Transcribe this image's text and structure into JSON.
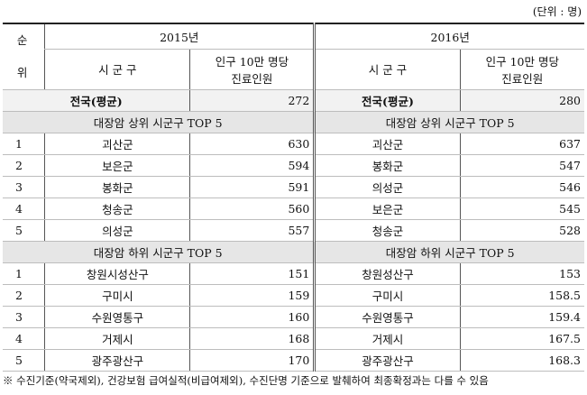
{
  "unit": "(단위 : 명)",
  "header": {
    "rank_label_1": "순",
    "rank_label_2": "위",
    "year_2015": "2015년",
    "year_2016": "2016년",
    "col_region": "시 군 구",
    "col_value_line1": "인구 10만 명당",
    "col_value_line2": "진료인원"
  },
  "national_average": {
    "label": "전국(평균)",
    "value_2015": "272",
    "value_2016": "280"
  },
  "top5": {
    "title": "대장암 상위 시군구 TOP 5",
    "rows": [
      {
        "rank": "1",
        "name_2015": "괴산군",
        "value_2015": "630",
        "name_2016": "괴산군",
        "value_2016": "637"
      },
      {
        "rank": "2",
        "name_2015": "보은군",
        "value_2015": "594",
        "name_2016": "봉화군",
        "value_2016": "547"
      },
      {
        "rank": "3",
        "name_2015": "봉화군",
        "value_2015": "591",
        "name_2016": "의성군",
        "value_2016": "546"
      },
      {
        "rank": "4",
        "name_2015": "청송군",
        "value_2015": "560",
        "name_2016": "보은군",
        "value_2016": "545"
      },
      {
        "rank": "5",
        "name_2015": "의성군",
        "value_2015": "557",
        "name_2016": "청송군",
        "value_2016": "528"
      }
    ]
  },
  "bottom5": {
    "title": "대장암 하위 시군구 TOP 5",
    "rows": [
      {
        "rank": "1",
        "name_2015": "창원시성산구",
        "value_2015": "151",
        "name_2016": "창원성산구",
        "value_2016": "153"
      },
      {
        "rank": "2",
        "name_2015": "구미시",
        "value_2015": "159",
        "name_2016": "구미시",
        "value_2016": "158.5"
      },
      {
        "rank": "3",
        "name_2015": "수원영통구",
        "value_2015": "160",
        "name_2016": "수원영통구",
        "value_2016": "159.4"
      },
      {
        "rank": "4",
        "name_2015": "거제시",
        "value_2015": "168",
        "name_2016": "거제시",
        "value_2016": "167.5"
      },
      {
        "rank": "5",
        "name_2015": "광주광산구",
        "value_2015": "170",
        "name_2016": "광주광산구",
        "value_2016": "168.3"
      }
    ]
  },
  "footnote": "※ 수진기준(약국제외), 건강보험 급여실적(비급여제외), 수진단명 기준으로 발췌하여 최종확정과는 다를 수 있음"
}
